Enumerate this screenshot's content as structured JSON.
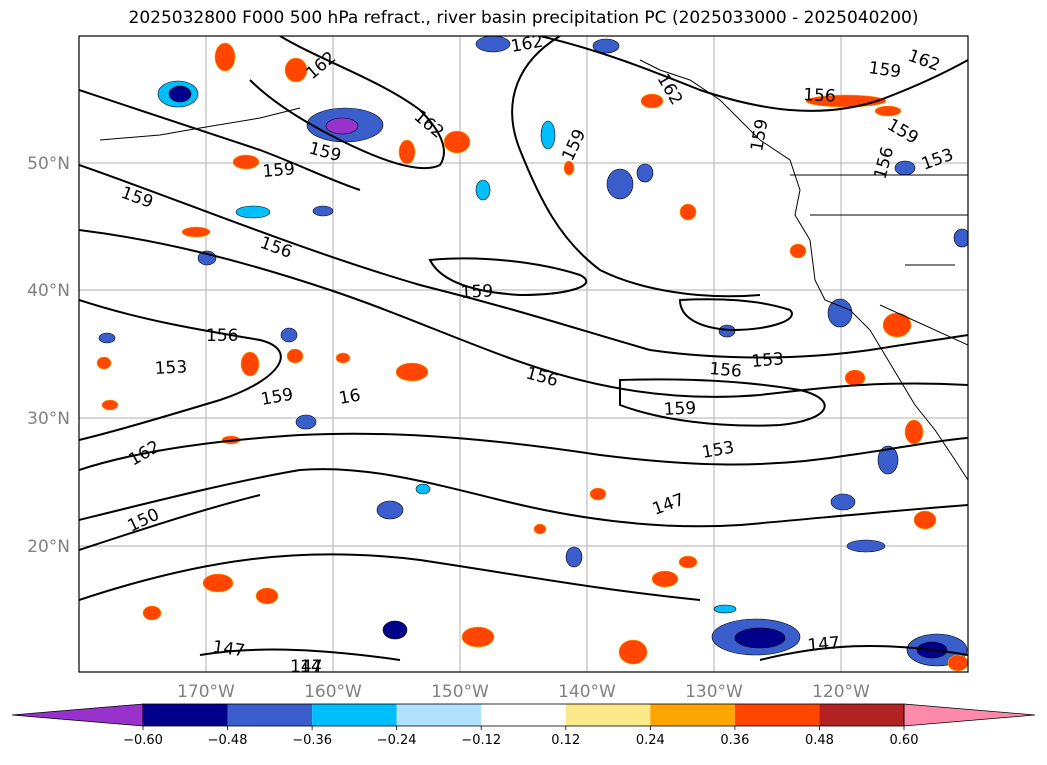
{
  "title": "2025032800 F000 500 hPa refract., river basin precipitation PC (2025033000 - 2025040200)",
  "map": {
    "lat_ticks": [
      "50°N",
      "40°N",
      "30°N",
      "20°N"
    ],
    "lon_ticks": [
      "170°W",
      "160°W",
      "150°W",
      "140°W",
      "130°W",
      "120°W"
    ],
    "tick_color": "#808080",
    "grid_color": "#b0b0b0"
  },
  "contour_labels": [
    {
      "text": "162"
    },
    {
      "text": "162"
    },
    {
      "text": "162"
    },
    {
      "text": "162"
    },
    {
      "text": "162"
    },
    {
      "text": "162"
    },
    {
      "text": "159"
    },
    {
      "text": "159"
    },
    {
      "text": "159"
    },
    {
      "text": "159"
    },
    {
      "text": "159"
    },
    {
      "text": "159"
    },
    {
      "text": "159"
    },
    {
      "text": "159"
    },
    {
      "text": "159"
    },
    {
      "text": "159"
    },
    {
      "text": "156"
    },
    {
      "text": "156"
    },
    {
      "text": "156"
    },
    {
      "text": "156"
    },
    {
      "text": "156"
    },
    {
      "text": "156"
    },
    {
      "text": "153"
    },
    {
      "text": "153"
    },
    {
      "text": "153"
    },
    {
      "text": "153"
    },
    {
      "text": "150"
    },
    {
      "text": "147"
    },
    {
      "text": "147"
    },
    {
      "text": "147"
    },
    {
      "text": "147"
    },
    {
      "text": "16"
    },
    {
      "text": "14"
    }
  ],
  "colorbar": {
    "tick_labels": [
      "−0.60",
      "−0.48",
      "−0.36",
      "−0.24",
      "−0.12",
      "0.12",
      "0.24",
      "0.36",
      "0.48",
      "0.60"
    ],
    "colors": [
      "#9932cc",
      "#00008b",
      "#3a5fcd",
      "#00bfff",
      "#b0e2ff",
      "#ffffff",
      "#fce98a",
      "#ffa500",
      "#ff4500",
      "#b22222",
      "#ff89aa"
    ]
  }
}
